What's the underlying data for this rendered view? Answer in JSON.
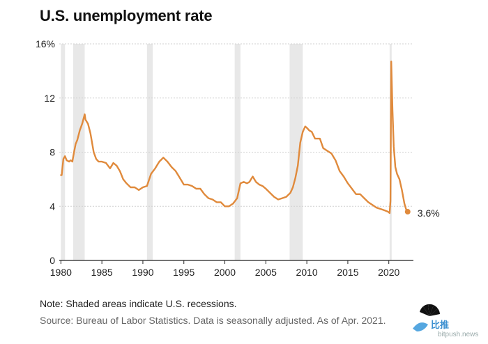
{
  "title": "U.S. unemployment rate",
  "note": "Note: Shaded areas indicate U.S. recessions.",
  "source": "Source: Bureau of Labor Statistics. Data is seasonally adjusted. As of Apr. 2021.",
  "watermark": {
    "text": "比推",
    "sub": "bitpush.news",
    "icon": "nbc-peacock-icon"
  },
  "chart_data": {
    "type": "line",
    "title": "U.S. unemployment rate",
    "xlabel": "",
    "ylabel": "",
    "xlim": [
      1979.8,
      2023
    ],
    "ylim": [
      0,
      16
    ],
    "x_ticks": [
      1980,
      1985,
      1990,
      1995,
      2000,
      2005,
      2010,
      2015,
      2020
    ],
    "x_tick_labels": [
      "1980",
      "1985",
      "1990",
      "1995",
      "2000",
      "2005",
      "2010",
      "2015",
      "2020"
    ],
    "y_ticks": [
      0,
      4,
      8,
      12,
      16
    ],
    "y_tick_labels": [
      "0",
      "4",
      "8",
      "12",
      "16%"
    ],
    "grid": true,
    "line_color": "#e08a3c",
    "recession_color": "#e8e8e8",
    "recessions": [
      [
        1980.0,
        1980.5
      ],
      [
        1981.5,
        1982.9
      ],
      [
        1990.5,
        1991.2
      ],
      [
        2001.2,
        2001.9
      ],
      [
        2007.9,
        2009.5
      ],
      [
        2020.1,
        2020.35
      ]
    ],
    "end_label": "3.6%",
    "series": [
      {
        "x": [
          1980.0,
          1980.1,
          1980.3,
          1980.5,
          1980.7,
          1981.0,
          1981.2,
          1981.4,
          1981.6,
          1981.8,
          1982.0,
          1982.3,
          1982.6,
          1982.9,
          1983.0,
          1983.3,
          1983.6,
          1984.0,
          1984.3,
          1984.6,
          1985.0,
          1985.5,
          1986.0,
          1986.4,
          1986.8,
          1987.2,
          1987.6,
          1988.0,
          1988.5,
          1989.0,
          1989.5,
          1990.0,
          1990.5,
          1991.0,
          1991.5,
          1992.0,
          1992.5,
          1993.0,
          1993.5,
          1994.0,
          1994.5,
          1995.0,
          1995.5,
          1996.0,
          1996.5,
          1997.0,
          1997.5,
          1998.0,
          1998.5,
          1999.0,
          1999.5,
          2000.0,
          2000.5,
          2001.0,
          2001.5,
          2001.9,
          2002.3,
          2002.7,
          2003.0,
          2003.4,
          2003.8,
          2004.2,
          2004.6,
          2005.0,
          2005.5,
          2006.0,
          2006.5,
          2007.0,
          2007.5,
          2008.0,
          2008.3,
          2008.6,
          2008.9,
          2009.2,
          2009.5,
          2009.8,
          2010.0,
          2010.3,
          2010.6,
          2011.0,
          2011.3,
          2011.6,
          2012.0,
          2012.5,
          2013.0,
          2013.5,
          2014.0,
          2014.5,
          2015.0,
          2015.5,
          2016.0,
          2016.5,
          2017.0,
          2017.5,
          2018.0,
          2018.5,
          2019.0,
          2019.5,
          2019.9,
          2020.1,
          2020.2,
          2020.3,
          2020.45,
          2020.6,
          2020.8,
          2021.0,
          2021.3,
          2021.6,
          2021.9,
          2022.1,
          2022.3
        ],
        "y": [
          6.3,
          6.3,
          7.5,
          7.7,
          7.4,
          7.3,
          7.4,
          7.3,
          8.0,
          8.6,
          8.9,
          9.6,
          10.1,
          10.8,
          10.4,
          10.1,
          9.4,
          8.0,
          7.5,
          7.3,
          7.3,
          7.2,
          6.8,
          7.2,
          7.0,
          6.6,
          6.0,
          5.7,
          5.4,
          5.4,
          5.2,
          5.4,
          5.5,
          6.4,
          6.8,
          7.3,
          7.6,
          7.3,
          6.9,
          6.6,
          6.1,
          5.6,
          5.6,
          5.5,
          5.3,
          5.3,
          4.9,
          4.6,
          4.5,
          4.3,
          4.3,
          4.0,
          4.0,
          4.2,
          4.6,
          5.7,
          5.8,
          5.7,
          5.8,
          6.2,
          5.8,
          5.6,
          5.5,
          5.3,
          5.0,
          4.7,
          4.5,
          4.6,
          4.7,
          5.0,
          5.4,
          6.1,
          7.0,
          8.7,
          9.5,
          9.9,
          9.8,
          9.6,
          9.5,
          9.0,
          9.0,
          9.0,
          8.3,
          8.1,
          7.9,
          7.4,
          6.6,
          6.2,
          5.7,
          5.3,
          4.9,
          4.9,
          4.6,
          4.3,
          4.1,
          3.9,
          3.8,
          3.7,
          3.6,
          3.5,
          4.4,
          14.7,
          11.1,
          8.4,
          6.9,
          6.4,
          6.0,
          5.2,
          4.2,
          3.8,
          3.6
        ]
      }
    ]
  }
}
